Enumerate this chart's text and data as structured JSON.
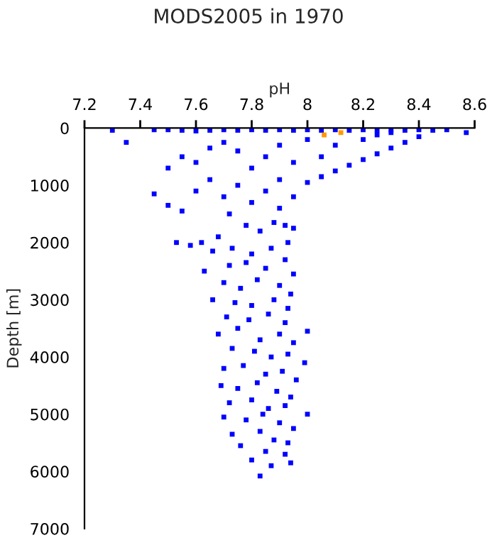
{
  "chart_data": {
    "type": "scatter",
    "title": "MODS2005 in 1970",
    "xlabel": "pH",
    "ylabel": "Depth [m]",
    "xlim": [
      7.2,
      8.6
    ],
    "xticks": [
      7.2,
      7.4,
      7.6,
      7.8,
      8,
      8.2,
      8.4,
      8.6
    ],
    "ylim": [
      7000,
      0
    ],
    "yticks": [
      0,
      1000,
      2000,
      3000,
      4000,
      5000,
      6000,
      7000
    ],
    "marker": "square",
    "grid": false,
    "legend": false,
    "series": [
      {
        "color": "#0000ff",
        "x": [
          7.3,
          7.45,
          7.5,
          7.55,
          7.6,
          7.65,
          7.7,
          7.75,
          7.8,
          7.85,
          7.9,
          7.95,
          8.0,
          8.05,
          8.1,
          8.15,
          8.2,
          8.25,
          8.3,
          8.35,
          8.4,
          8.45,
          8.5,
          8.57,
          8.4,
          8.35,
          8.3,
          8.25,
          8.2,
          8.15,
          8.1,
          8.05,
          8.0,
          8.2,
          8.1,
          8.0,
          7.9,
          7.85,
          7.95,
          8.05,
          7.8,
          7.9,
          7.75,
          7.7,
          7.65,
          7.6,
          7.55,
          7.5,
          7.45,
          7.5,
          7.55,
          7.6,
          7.65,
          7.7,
          7.75,
          7.8,
          7.85,
          7.9,
          7.95,
          7.92,
          7.88,
          7.83,
          7.78,
          7.72,
          7.68,
          7.62,
          7.58,
          7.53,
          7.66,
          7.73,
          7.8,
          7.87,
          7.93,
          8.3,
          8.25,
          7.35,
          7.95,
          7.63,
          7.72,
          7.78,
          7.85,
          7.92,
          7.95,
          7.7,
          7.76,
          7.82,
          7.9,
          7.94,
          7.66,
          7.74,
          7.8,
          7.88,
          7.93,
          7.71,
          7.79,
          7.86,
          7.92,
          8.0,
          7.68,
          7.75,
          7.83,
          7.9,
          7.95,
          7.73,
          7.81,
          7.87,
          7.93,
          7.99,
          7.7,
          7.77,
          7.85,
          7.91,
          7.96,
          7.69,
          7.75,
          7.82,
          7.89,
          7.94,
          7.72,
          7.8,
          7.86,
          7.92,
          8.0,
          7.7,
          7.78,
          7.84,
          7.9,
          7.95,
          7.73,
          7.83,
          7.88,
          7.93,
          7.76,
          7.85,
          7.92,
          7.8,
          7.87,
          7.94,
          7.83
        ],
        "values": [
          40,
          30,
          30,
          40,
          50,
          40,
          30,
          40,
          30,
          40,
          30,
          40,
          30,
          40,
          30,
          40,
          30,
          40,
          30,
          40,
          30,
          40,
          30,
          80,
          150,
          250,
          350,
          450,
          550,
          650,
          750,
          850,
          950,
          200,
          300,
          200,
          300,
          500,
          600,
          500,
          700,
          900,
          400,
          250,
          350,
          600,
          500,
          700,
          1150,
          1350,
          1450,
          1100,
          900,
          1200,
          1000,
          1300,
          1100,
          1400,
          1200,
          1700,
          1650,
          1800,
          1700,
          1500,
          1900,
          2000,
          2050,
          2000,
          2150,
          2100,
          2200,
          2100,
          2000,
          80,
          120,
          250,
          1750,
          2500,
          2400,
          2350,
          2450,
          2300,
          2550,
          2700,
          2800,
          2650,
          2750,
          2900,
          3000,
          3050,
          3100,
          3000,
          3150,
          3300,
          3350,
          3250,
          3400,
          3550,
          3600,
          3500,
          3700,
          3600,
          3750,
          3850,
          3900,
          4000,
          3950,
          4100,
          4200,
          4150,
          4300,
          4250,
          4400,
          4500,
          4550,
          4450,
          4600,
          4700,
          4800,
          4750,
          4900,
          4850,
          5000,
          5050,
          5100,
          5000,
          5150,
          5250,
          5350,
          5300,
          5450,
          5500,
          5550,
          5650,
          5700,
          5800,
          5900,
          5850,
          6080
        ]
      },
      {
        "color": "#ff9900",
        "x": [
          8.06,
          8.12
        ],
        "values": [
          120,
          80
        ]
      }
    ]
  }
}
